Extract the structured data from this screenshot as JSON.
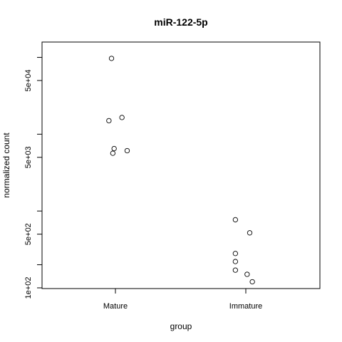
{
  "chart_data": {
    "type": "scatter",
    "title": "miR-122-5p",
    "xlabel": "group",
    "ylabel": "normalized count",
    "y_scale": "log",
    "ylim": [
      100,
      120000
    ],
    "categories": [
      "Mature",
      "Immature"
    ],
    "y_ticks": [
      {
        "value": 100,
        "label": "1e+02"
      },
      {
        "value": 200,
        "label": ""
      },
      {
        "value": 500,
        "label": "5e+02"
      },
      {
        "value": 1000,
        "label": ""
      },
      {
        "value": 5000,
        "label": "5e+03"
      },
      {
        "value": 10000,
        "label": ""
      },
      {
        "value": 50000,
        "label": "5e+04"
      },
      {
        "value": 100000,
        "label": ""
      }
    ],
    "points": [
      {
        "group": "Mature",
        "jitter": -0.03,
        "y": 97000
      },
      {
        "group": "Mature",
        "jitter": 0.05,
        "y": 16500
      },
      {
        "group": "Mature",
        "jitter": -0.05,
        "y": 15000
      },
      {
        "group": "Mature",
        "jitter": -0.01,
        "y": 6500
      },
      {
        "group": "Mature",
        "jitter": 0.09,
        "y": 6100
      },
      {
        "group": "Mature",
        "jitter": -0.02,
        "y": 5650
      },
      {
        "group": "Immature",
        "jitter": -0.08,
        "y": 770
      },
      {
        "group": "Immature",
        "jitter": 0.03,
        "y": 520
      },
      {
        "group": "Immature",
        "jitter": -0.08,
        "y": 280
      },
      {
        "group": "Immature",
        "jitter": -0.08,
        "y": 220
      },
      {
        "group": "Immature",
        "jitter": -0.08,
        "y": 170
      },
      {
        "group": "Immature",
        "jitter": 0.01,
        "y": 150
      },
      {
        "group": "Immature",
        "jitter": 0.05,
        "y": 120
      }
    ]
  }
}
